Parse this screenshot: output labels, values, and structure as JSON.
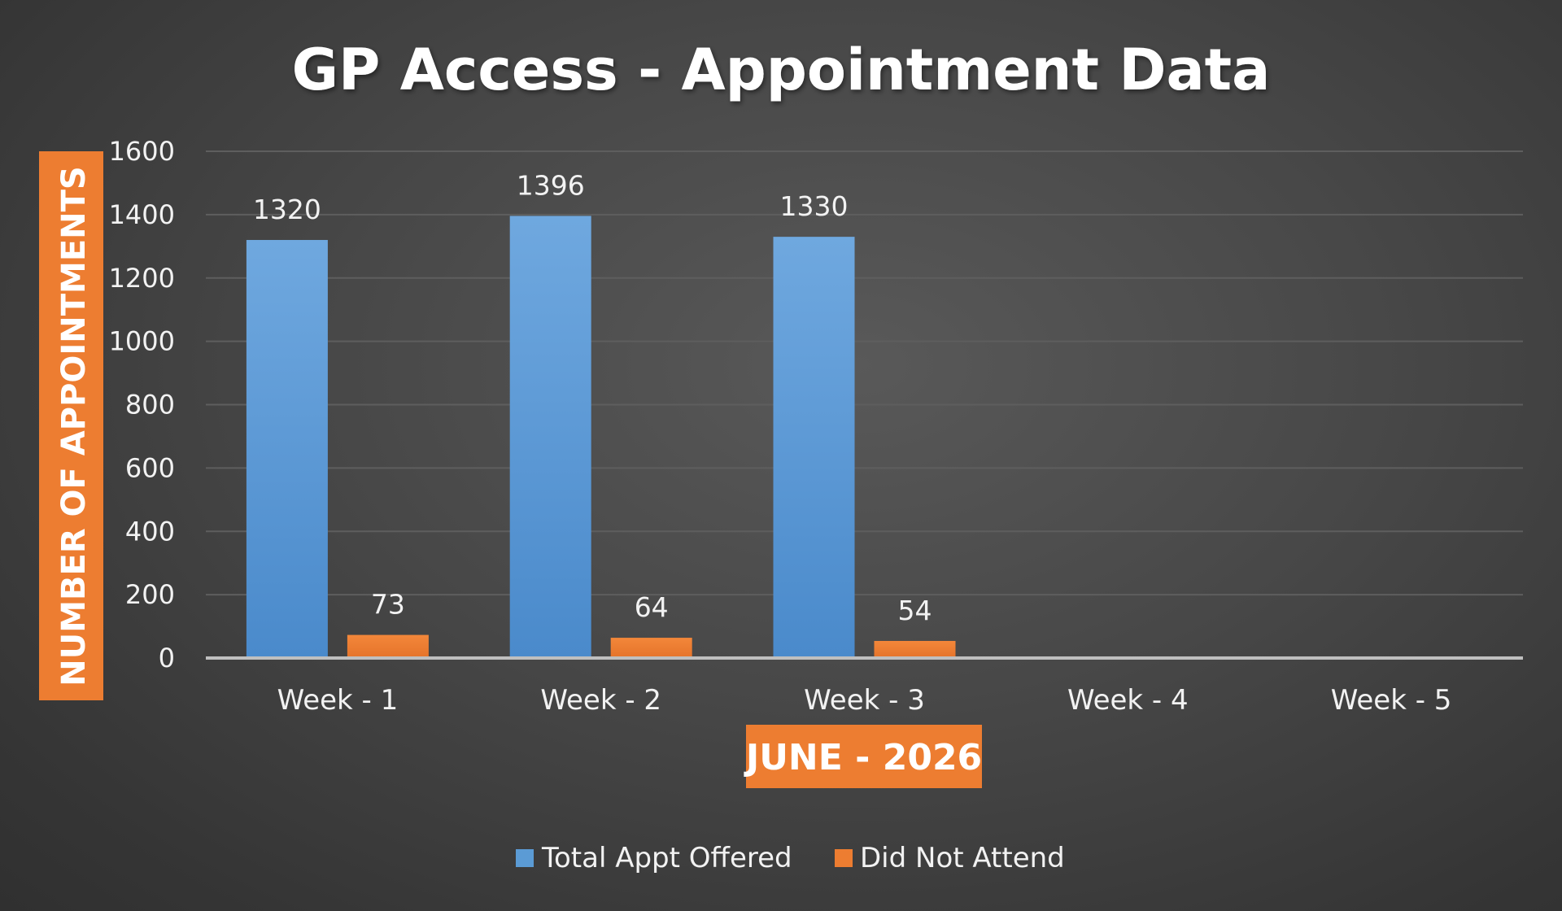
{
  "chart_data": {
    "type": "bar",
    "title": "GP Access - Appointment Data",
    "xlabel": "JUNE - 2026",
    "ylabel": "NUMBER OF APPOINTMENTS",
    "categories": [
      "Week - 1",
      "Week - 2",
      "Week - 3",
      "Week - 4",
      "Week - 5"
    ],
    "series": [
      {
        "name": "Total Appt Offered",
        "values": [
          1320,
          1396,
          1330,
          null,
          null
        ],
        "color": "#5b9bd5"
      },
      {
        "name": "Did Not Attend",
        "values": [
          73,
          64,
          54,
          null,
          null
        ],
        "color": "#ed7d31"
      }
    ],
    "ylim": [
      0,
      1600
    ],
    "yticks": [
      0,
      200,
      400,
      600,
      800,
      1000,
      1200,
      1400,
      1600
    ],
    "grid": true,
    "legend": "bottom",
    "data_labels": true,
    "colors": {
      "axis_title_bg": "#ed7d31",
      "gridline": "#5e5e5e",
      "baseline": "#bfbfbf"
    }
  }
}
